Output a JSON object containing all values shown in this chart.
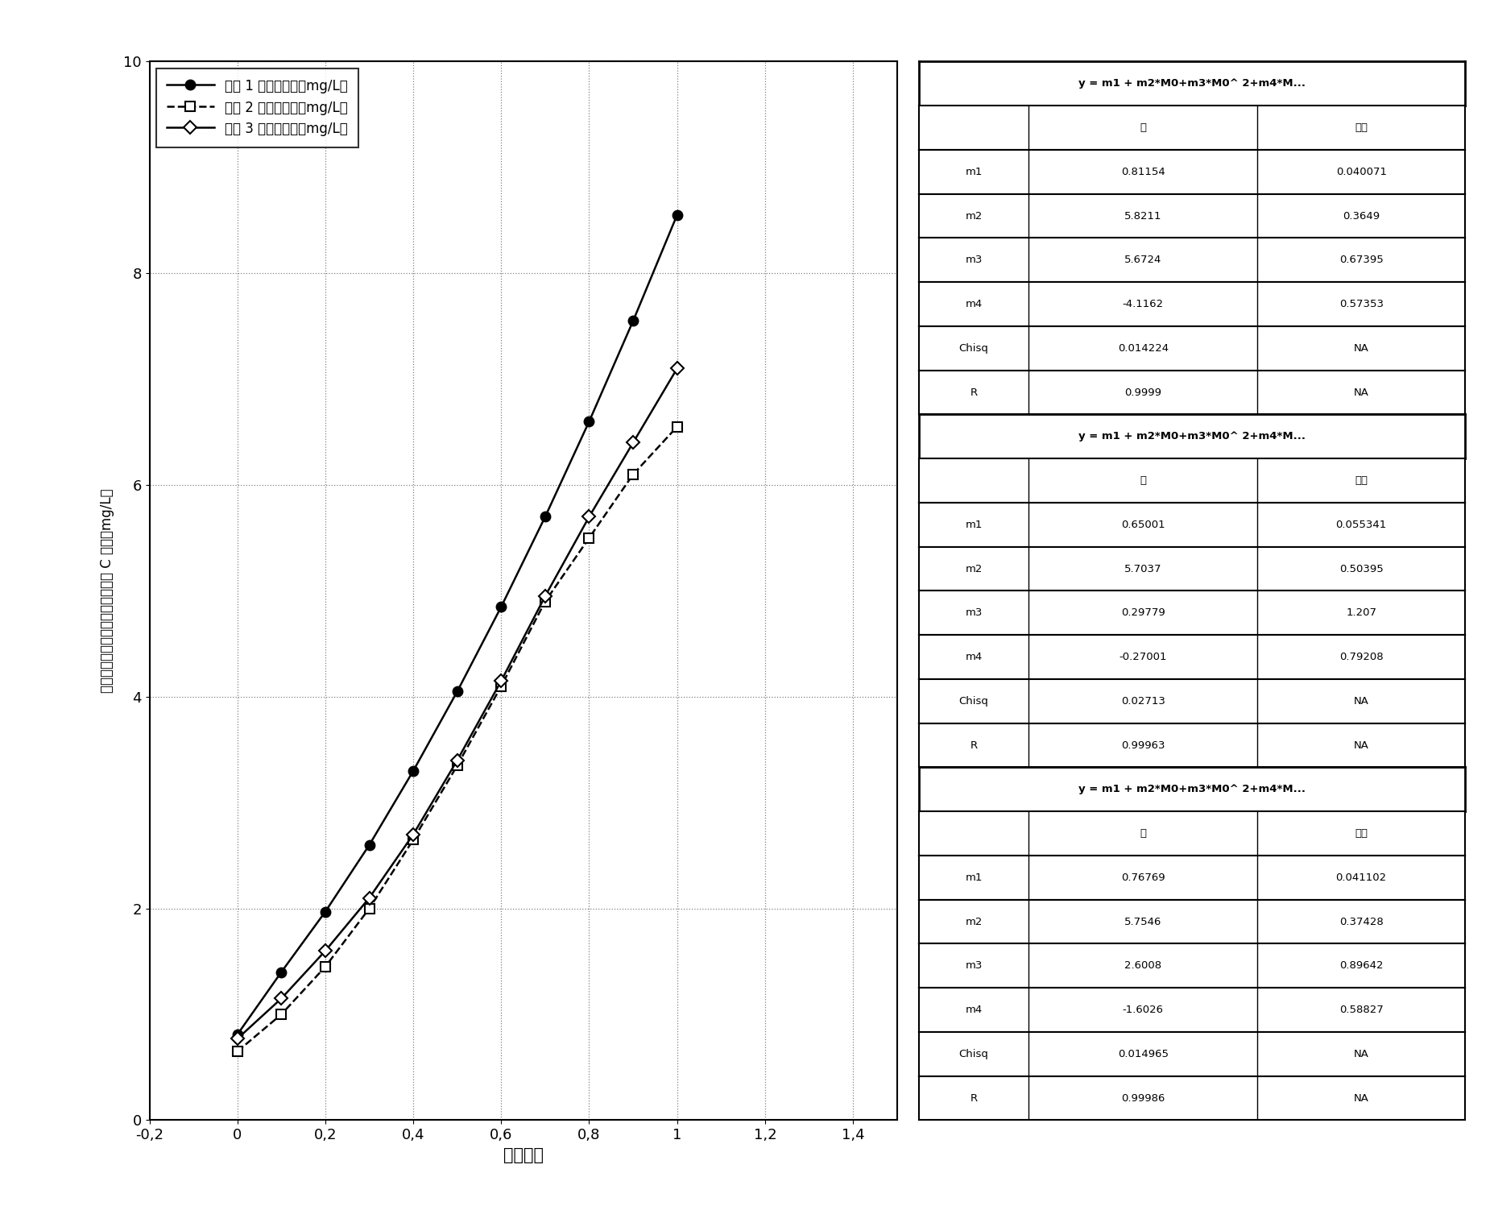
{
  "series1_label": "血清 1 的平均浓度（mg/L）",
  "series2_label": "血清 2 的平均浓度（mg/L）",
  "series3_label": "血清 3 的平均浓度（mg/L）",
  "x_data": [
    0,
    0.1,
    0.2,
    0.3,
    0.4,
    0.5,
    0.6,
    0.7,
    0.8,
    0.9,
    1.0
  ],
  "y1_data": [
    0.81,
    1.4,
    1.97,
    2.6,
    3.3,
    4.05,
    4.85,
    5.7,
    6.6,
    7.55,
    8.55
  ],
  "y2_data": [
    0.65,
    1.0,
    1.45,
    2.0,
    2.65,
    3.35,
    4.1,
    4.9,
    5.5,
    6.1,
    6.55
  ],
  "y3_data": [
    0.77,
    1.15,
    1.6,
    2.1,
    2.7,
    3.4,
    4.15,
    4.95,
    5.7,
    6.4,
    7.1
  ],
  "xlim": [
    -0.2,
    1.5
  ],
  "ylim": [
    0,
    10
  ],
  "xtick_vals": [
    -0.2,
    0,
    0.2,
    0.4,
    0.6,
    0.8,
    1.0,
    1.2,
    1.4
  ],
  "xtick_labels": [
    "-0,2",
    "0",
    "0,2",
    "0,4",
    "0,6",
    "0,8",
    "1",
    "1,2",
    "1,4"
  ],
  "ytick_vals": [
    0,
    2,
    4,
    6,
    8,
    10
  ],
  "ytick_labels": [
    "0",
    "2",
    "4",
    "6",
    "8",
    "10"
  ],
  "xlabel": "稀释因子",
  "ylabel": "测量的平均半胱氨酸蛋白酶抑制剂 C 浓度（mg/L）",
  "table1_header": "y = m1 + m2*M0+m3*M0^ 2+m4*M...",
  "table1_rows": [
    [
      "",
      "值",
      "误差"
    ],
    [
      "m1",
      "0.81154",
      "0.040071"
    ],
    [
      "m2",
      "5.8211",
      "0.3649"
    ],
    [
      "m3",
      "5.6724",
      "0.67395"
    ],
    [
      "m4",
      "-4.1162",
      "0.57353"
    ],
    [
      "Chisq",
      "0.014224",
      "NA"
    ],
    [
      "R",
      "0.9999",
      "NA"
    ]
  ],
  "table2_header": "y = m1 + m2*M0+m3*M0^ 2+m4*M...",
  "table2_rows": [
    [
      "",
      "值",
      "误差"
    ],
    [
      "m1",
      "0.65001",
      "0.055341"
    ],
    [
      "m2",
      "5.7037",
      "0.50395"
    ],
    [
      "m3",
      "0.29779",
      "1.207"
    ],
    [
      "m4",
      "-0.27001",
      "0.79208"
    ],
    [
      "Chisq",
      "0.02713",
      "NA"
    ],
    [
      "R",
      "0.99963",
      "NA"
    ]
  ],
  "table3_header": "y = m1 + m2*M0+m3*M0^ 2+m4*M...",
  "table3_rows": [
    [
      "",
      "值",
      "误差"
    ],
    [
      "m1",
      "0.76769",
      "0.041102"
    ],
    [
      "m2",
      "5.7546",
      "0.37428"
    ],
    [
      "m3",
      "2.6008",
      "0.89642"
    ],
    [
      "m4",
      "-1.6026",
      "0.58827"
    ],
    [
      "Chisq",
      "0.014965",
      "NA"
    ],
    [
      "R",
      "0.99986",
      "NA"
    ]
  ],
  "background_color": "#ffffff"
}
